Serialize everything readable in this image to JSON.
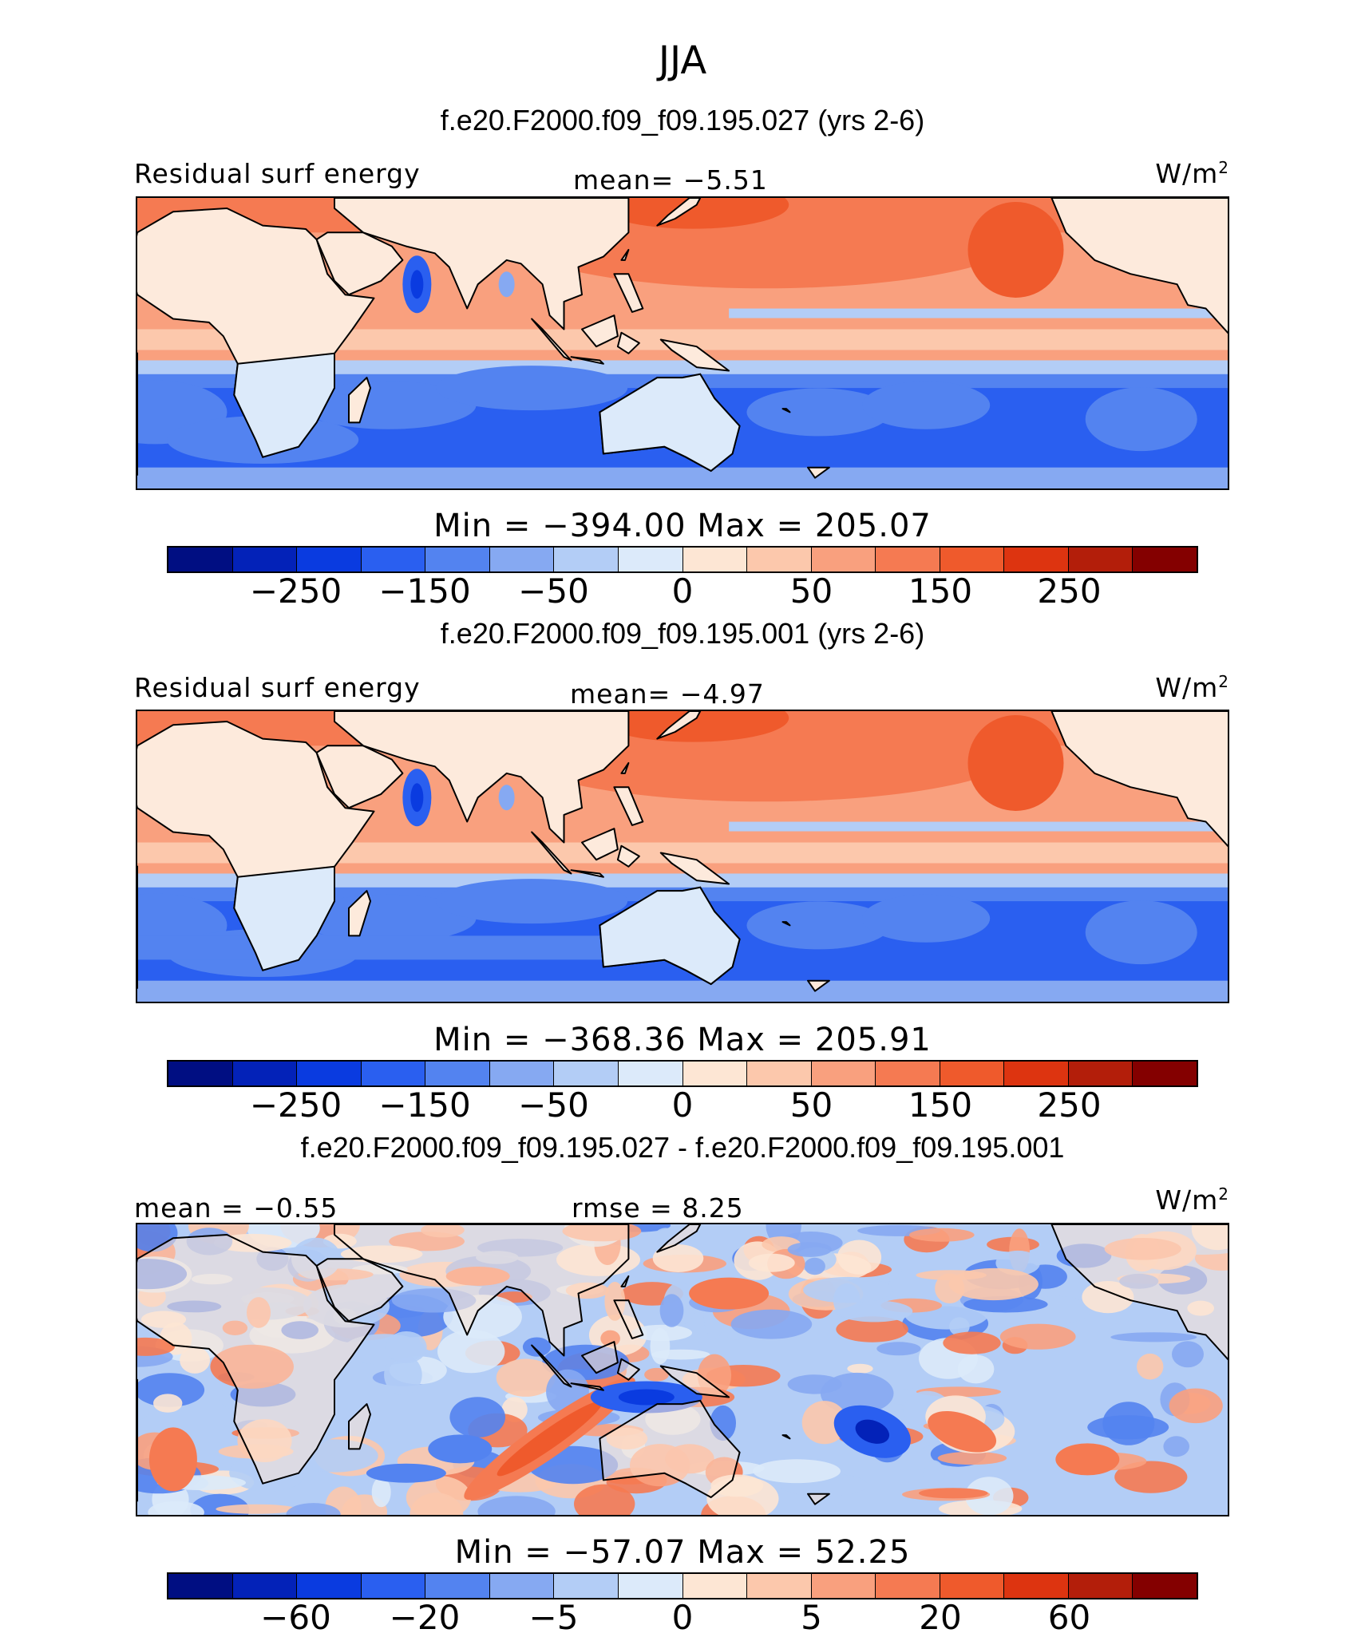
{
  "season": "JJA",
  "colors": {
    "pos": [
      "#fde6d4",
      "#fcc8ac",
      "#f9a07e",
      "#f57a52",
      "#ef5a2c",
      "#dd3410",
      "#b31e0a",
      "#840000"
    ],
    "neg": [
      "#dceafa",
      "#b3cdf6",
      "#86a9f2",
      "#5383f0",
      "#2a5ff0",
      "#0a3be0",
      "#0322b8",
      "#000e82"
    ],
    "land": "#fdeadc",
    "coast": "#000000"
  },
  "panels": [
    {
      "case_title": "f.e20.F2000.f09_f09.195.027 (yrs 2-6)",
      "left_label": "Residual surf energy",
      "center_label": "mean=   −5.51",
      "units": "W/m",
      "units_sup": "2",
      "min_max": "Min  =  −394.00  Max  =  205.07",
      "tick_labels": [
        "−250",
        "−150",
        "−50",
        "0",
        "50",
        "150",
        "250"
      ],
      "colorbar_colors": [
        "#000e82",
        "#0322b8",
        "#0a3be0",
        "#2a5ff0",
        "#5383f0",
        "#86a9f2",
        "#b3cdf6",
        "#dceafa",
        "#fde6d4",
        "#fcc8ac",
        "#f9a07e",
        "#f57a52",
        "#ef5a2c",
        "#dd3410",
        "#b31e0a",
        "#840000"
      ],
      "map_type": "field"
    },
    {
      "case_title": "f.e20.F2000.f09_f09.195.001 (yrs 2-6)",
      "left_label": "Residual surf energy",
      "center_label": "mean=   −4.97",
      "units": "W/m",
      "units_sup": "2",
      "min_max": "Min  =  −368.36  Max  =  205.91",
      "tick_labels": [
        "−250",
        "−150",
        "−50",
        "0",
        "50",
        "150",
        "250"
      ],
      "colorbar_colors": [
        "#000e82",
        "#0322b8",
        "#0a3be0",
        "#2a5ff0",
        "#5383f0",
        "#86a9f2",
        "#b3cdf6",
        "#dceafa",
        "#fde6d4",
        "#fcc8ac",
        "#f9a07e",
        "#f57a52",
        "#ef5a2c",
        "#dd3410",
        "#b31e0a",
        "#840000"
      ],
      "map_type": "field"
    },
    {
      "case_title": "f.e20.F2000.f09_f09.195.027 - f.e20.F2000.f09_f09.195.001",
      "left_label": "mean  =   −0.55",
      "center_label": "rmse  =    8.25",
      "units": "W/m",
      "units_sup": "2",
      "min_max": "Min  =  −57.07  Max  =   52.25",
      "tick_labels": [
        "−60",
        "−20",
        "−5",
        "0",
        "5",
        "20",
        "60"
      ],
      "colorbar_colors": [
        "#000e82",
        "#0322b8",
        "#0a3be0",
        "#2a5ff0",
        "#5383f0",
        "#86a9f2",
        "#b3cdf6",
        "#dceafa",
        "#fde6d4",
        "#fcc8ac",
        "#f9a07e",
        "#f57a52",
        "#ef5a2c",
        "#dd3410",
        "#b31e0a",
        "#840000"
      ],
      "map_type": "diff"
    }
  ]
}
